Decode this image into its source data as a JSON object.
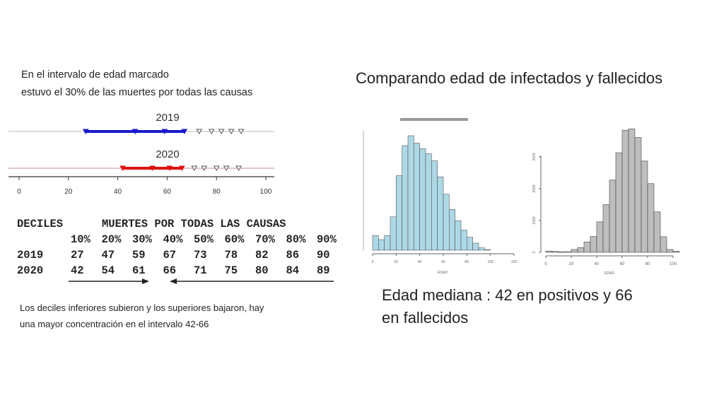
{
  "intro": {
    "line1": "En el intervalo de edad marcado",
    "line2": "estuvo el 30% de las muertes por todas las causas"
  },
  "table": {
    "title_left": "DECILES",
    "title_right": "MUERTES POR TODAS LAS CAUSAS",
    "headers": [
      "10%",
      "20%",
      "30%",
      "40%",
      "50%",
      "60%",
      "70%",
      "80%",
      "90%"
    ],
    "rows": [
      {
        "label": "2019",
        "values": [
          "27",
          "47",
          "59",
          "67",
          "73",
          "78",
          "82",
          "86",
          "90"
        ]
      },
      {
        "label": "2020",
        "values": [
          "42",
          "54",
          "61",
          "66",
          "71",
          "75",
          "80",
          "84",
          "89"
        ]
      }
    ]
  },
  "footer": {
    "line1": "Los deciles inferiores subieron y los superiores bajaron, hay",
    "line2": "una mayor concentración en el intervalo 42-66"
  },
  "right_title": "Comparando edad de infectados y fallecidos",
  "median_text": {
    "line1": "Edad mediana : 42 en positivos y 66",
    "line2": "en fallecidos"
  },
  "chart_data": [
    {
      "type": "scatter",
      "description_kind": "decile dot plot",
      "xlim": [
        0,
        100
      ],
      "xticks": [
        "0",
        "20",
        "40",
        "60",
        "80",
        "100"
      ],
      "series": [
        {
          "name": "2019",
          "color": "#1a1acc",
          "values": [
            27,
            47,
            59,
            67,
            73,
            78,
            82,
            86,
            90
          ],
          "highlight_count": 4
        },
        {
          "name": "2020",
          "color": "#dd1111",
          "values": [
            42,
            54,
            61,
            66,
            71,
            75,
            80,
            84,
            89
          ],
          "highlight_count": 4
        }
      ]
    },
    {
      "type": "bar",
      "subtype": "histogram",
      "color": "#add8e6",
      "xlabel": "EDAD",
      "xlim": [
        0,
        120
      ],
      "xticks": [
        "0",
        "20",
        "40",
        "60",
        "80",
        "100",
        "120"
      ],
      "bin_width": 5,
      "bin_start": 0,
      "values": [
        62,
        45,
        62,
        142,
        317,
        445,
        487,
        455,
        432,
        410,
        380,
        312,
        238,
        173,
        125,
        85,
        55,
        30,
        10,
        3
      ]
    },
    {
      "type": "bar",
      "subtype": "histogram",
      "color": "#bebebe",
      "xlabel": "EDAD",
      "xlim": [
        0,
        110
      ],
      "ylim": [
        0,
        4000
      ],
      "xticks": [
        "0",
        "20",
        "40",
        "60",
        "80",
        "100"
      ],
      "yticks": [
        "0",
        "1000",
        "2000",
        "3000"
      ],
      "bin_width": 5,
      "bin_start": 0,
      "values": [
        40,
        30,
        15,
        20,
        90,
        150,
        325,
        500,
        960,
        1500,
        2270,
        3130,
        3840,
        3880,
        3610,
        2870,
        2160,
        1270,
        490,
        90,
        35
      ]
    }
  ],
  "arrows": {
    "color": "#222222"
  }
}
